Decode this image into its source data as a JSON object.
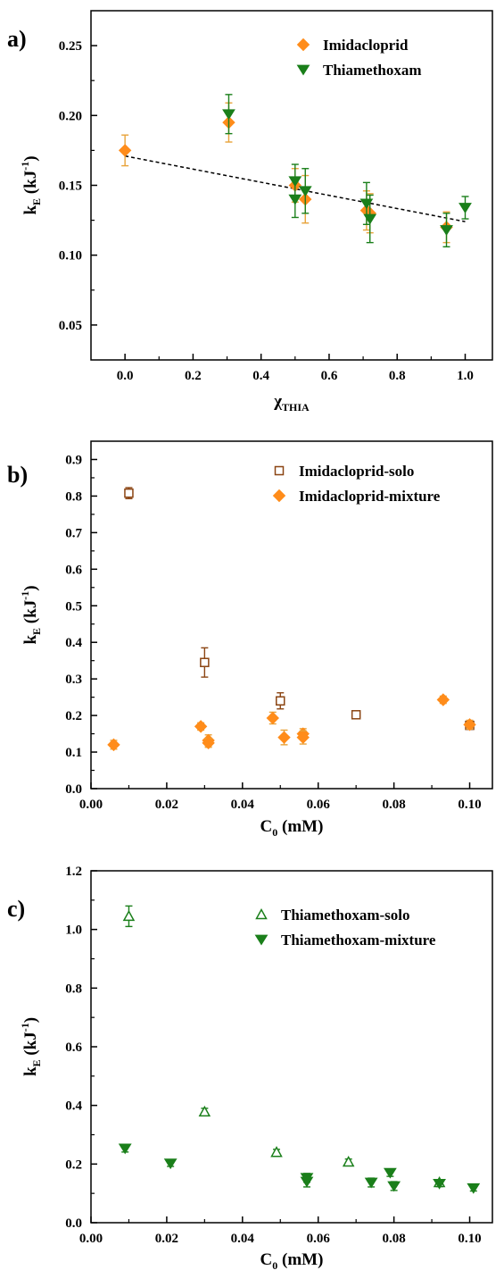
{
  "colors": {
    "imidacloprid": "#FF8C1A",
    "imidacloprid_err": "#E8A33A",
    "imidacloprid_solo": "#8B4513",
    "thiamethoxam": "#1A7F1A",
    "trend": "#000000"
  },
  "chart_data": [
    {
      "type": "scatter",
      "panel_label": "a)",
      "xlabel": "χ",
      "xlabel_sub": "THIA",
      "ylabel": "k",
      "ylabel_sub": "E",
      "ylabel_unit": "(kJ",
      "ylabel_sup": "-1",
      "ylabel_close": ")",
      "xlim": [
        -0.1,
        1.08
      ],
      "ylim": [
        0.025,
        0.275
      ],
      "xticks": [
        0.0,
        0.2,
        0.4,
        0.6,
        0.8,
        1.0
      ],
      "xtick_labels": [
        "0.0",
        "0.2",
        "0.4",
        "0.6",
        "0.8",
        "1.0"
      ],
      "yticks": [
        0.05,
        0.1,
        0.15,
        0.2,
        0.25
      ],
      "ytick_labels": [
        "0.05",
        "0.10",
        "0.15",
        "0.20",
        "0.25"
      ],
      "legend_position": "top-right",
      "trendline": {
        "x": [
          0.0,
          1.0
        ],
        "y": [
          0.171,
          0.124
        ]
      },
      "series": [
        {
          "name": "Imidacloprid",
          "marker": "diamond",
          "color_key": "imidacloprid",
          "points": [
            {
              "x": 0.0,
              "y": 0.175,
              "err": 0.011
            },
            {
              "x": 0.305,
              "y": 0.195,
              "err": 0.014
            },
            {
              "x": 0.5,
              "y": 0.15,
              "err": 0.012
            },
            {
              "x": 0.53,
              "y": 0.14,
              "err": 0.017
            },
            {
              "x": 0.71,
              "y": 0.132,
              "err": 0.014
            },
            {
              "x": 0.72,
              "y": 0.13,
              "err": 0.014
            },
            {
              "x": 0.945,
              "y": 0.12,
              "err": 0.011
            }
          ]
        },
        {
          "name": "Thiamethoxam",
          "marker": "triangle-down",
          "color_key": "thiamethoxam",
          "points": [
            {
              "x": 0.305,
              "y": 0.201,
              "err": 0.014
            },
            {
              "x": 0.5,
              "y": 0.153,
              "err": 0.012
            },
            {
              "x": 0.5,
              "y": 0.14,
              "err": 0.013
            },
            {
              "x": 0.53,
              "y": 0.146,
              "err": 0.016
            },
            {
              "x": 0.71,
              "y": 0.137,
              "err": 0.015
            },
            {
              "x": 0.72,
              "y": 0.126,
              "err": 0.017
            },
            {
              "x": 0.945,
              "y": 0.118,
              "err": 0.012
            },
            {
              "x": 1.0,
              "y": 0.134,
              "err": 0.008
            }
          ]
        }
      ]
    },
    {
      "type": "scatter",
      "panel_label": "b)",
      "xlabel": "C",
      "xlabel_sub": "0",
      "xlabel_unit": " (mM)",
      "ylabel": "k",
      "ylabel_sub": "E",
      "ylabel_unit": "(kJ",
      "ylabel_sup": "-1",
      "ylabel_close": ")",
      "xlim": [
        0.0,
        0.106
      ],
      "ylim": [
        0.0,
        0.95
      ],
      "xticks": [
        0.0,
        0.02,
        0.04,
        0.06,
        0.08,
        0.1
      ],
      "xtick_labels": [
        "0.00",
        "0.02",
        "0.04",
        "0.06",
        "0.08",
        "0.10"
      ],
      "yticks": [
        0.0,
        0.1,
        0.2,
        0.3,
        0.4,
        0.5,
        0.6,
        0.7,
        0.8,
        0.9
      ],
      "ytick_labels": [
        "0.0",
        "0.1",
        "0.2",
        "0.3",
        "0.4",
        "0.5",
        "0.6",
        "0.7",
        "0.8",
        "0.9"
      ],
      "legend_position": "top-right",
      "series": [
        {
          "name": "Imidacloprid-solo",
          "marker": "square-open",
          "color_key": "imidacloprid_solo",
          "points": [
            {
              "x": 0.01,
              "y": 0.808,
              "err": 0.015
            },
            {
              "x": 0.03,
              "y": 0.345,
              "err": 0.04
            },
            {
              "x": 0.05,
              "y": 0.24,
              "err": 0.022
            },
            {
              "x": 0.07,
              "y": 0.202,
              "err": 0.008
            },
            {
              "x": 0.1,
              "y": 0.173,
              "err": 0.01
            }
          ]
        },
        {
          "name": "Imidacloprid-mixture",
          "marker": "diamond",
          "color_key": "imidacloprid",
          "points": [
            {
              "x": 0.006,
              "y": 0.12,
              "err": 0.012
            },
            {
              "x": 0.029,
              "y": 0.17,
              "err": 0.01
            },
            {
              "x": 0.031,
              "y": 0.132,
              "err": 0.015
            },
            {
              "x": 0.031,
              "y": 0.125,
              "err": 0.012
            },
            {
              "x": 0.048,
              "y": 0.193,
              "err": 0.016
            },
            {
              "x": 0.051,
              "y": 0.14,
              "err": 0.02
            },
            {
              "x": 0.056,
              "y": 0.15,
              "err": 0.014
            },
            {
              "x": 0.056,
              "y": 0.14,
              "err": 0.018
            },
            {
              "x": 0.093,
              "y": 0.243,
              "err": 0.01
            },
            {
              "x": 0.1,
              "y": 0.175,
              "err": 0.012
            }
          ]
        }
      ]
    },
    {
      "type": "scatter",
      "panel_label": "c)",
      "xlabel": "C",
      "xlabel_sub": "0",
      "xlabel_unit": " (mM)",
      "ylabel": "k",
      "ylabel_sub": "E",
      "ylabel_unit": "(kJ",
      "ylabel_sup": "-1",
      "ylabel_close": ")",
      "xlim": [
        0.0,
        0.106
      ],
      "ylim": [
        0.0,
        1.2
      ],
      "xticks": [
        0.0,
        0.02,
        0.04,
        0.06,
        0.08,
        0.1
      ],
      "xtick_labels": [
        "0.00",
        "0.02",
        "0.04",
        "0.06",
        "0.08",
        "0.10"
      ],
      "yticks": [
        0.0,
        0.2,
        0.4,
        0.6,
        0.8,
        1.0,
        1.2
      ],
      "ytick_labels": [
        "0.0",
        "0.2",
        "0.4",
        "0.6",
        "0.8",
        "1.0",
        "1.2"
      ],
      "legend_position": "top-right",
      "series": [
        {
          "name": "Thiamethoxam-solo",
          "marker": "triangle-open",
          "color_key": "thiamethoxam",
          "points": [
            {
              "x": 0.01,
              "y": 1.045,
              "err": 0.035
            },
            {
              "x": 0.03,
              "y": 0.378,
              "err": 0.012
            },
            {
              "x": 0.049,
              "y": 0.24,
              "err": 0.01
            },
            {
              "x": 0.068,
              "y": 0.207,
              "err": 0.01
            },
            {
              "x": 0.092,
              "y": 0.137,
              "err": 0.008
            }
          ]
        },
        {
          "name": "Thiamethoxam-mixture",
          "marker": "triangle-down",
          "color_key": "thiamethoxam",
          "points": [
            {
              "x": 0.009,
              "y": 0.253,
              "err": 0.012
            },
            {
              "x": 0.021,
              "y": 0.202,
              "err": 0.01
            },
            {
              "x": 0.057,
              "y": 0.153,
              "err": 0.015
            },
            {
              "x": 0.057,
              "y": 0.14,
              "err": 0.018
            },
            {
              "x": 0.074,
              "y": 0.137,
              "err": 0.015
            },
            {
              "x": 0.079,
              "y": 0.17,
              "err": 0.012
            },
            {
              "x": 0.08,
              "y": 0.125,
              "err": 0.015
            },
            {
              "x": 0.092,
              "y": 0.133,
              "err": 0.01
            },
            {
              "x": 0.101,
              "y": 0.118,
              "err": 0.01
            }
          ]
        }
      ]
    }
  ]
}
